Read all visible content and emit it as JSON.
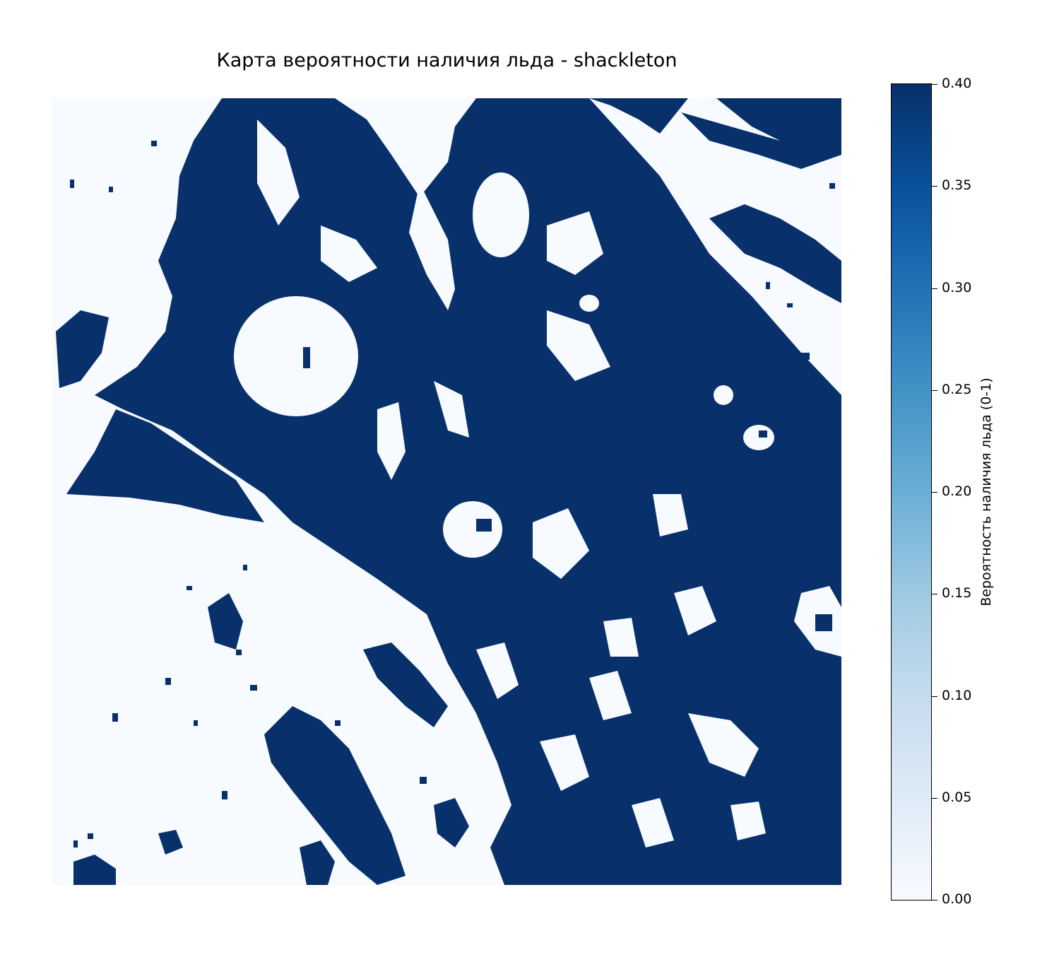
{
  "chart_data": {
    "type": "heatmap",
    "title": "Карта вероятности наличия льда - shackleton",
    "colormap": "Blues",
    "colors": {
      "low": "#f7fbff",
      "high": "#08306b"
    },
    "value_range": [
      0.0,
      0.4
    ],
    "colorbar": {
      "label": "Вероятность наличия льда (0-1)",
      "ticks": [
        "0.00",
        "0.05",
        "0.10",
        "0.15",
        "0.20",
        "0.25",
        "0.30",
        "0.35",
        "0.40"
      ]
    },
    "axes_visible": false
  }
}
